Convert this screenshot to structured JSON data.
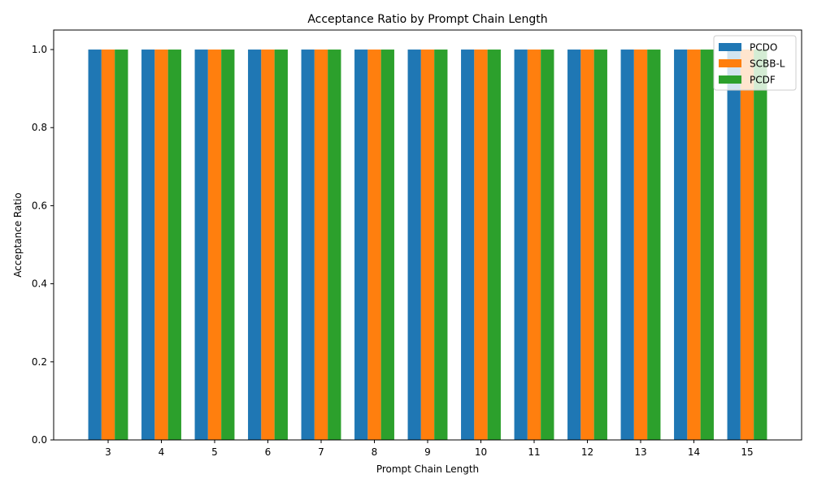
{
  "chart_data": {
    "type": "bar",
    "title": "Acceptance Ratio by Prompt Chain Length",
    "xlabel": "Prompt Chain Length",
    "ylabel": "Acceptance Ratio",
    "ylim": [
      0,
      1.05
    ],
    "yticks": [
      0.0,
      0.2,
      0.4,
      0.6,
      0.8,
      1.0
    ],
    "categories": [
      "3",
      "4",
      "5",
      "6",
      "7",
      "8",
      "9",
      "10",
      "11",
      "12",
      "13",
      "14",
      "15"
    ],
    "series": [
      {
        "name": "PCDO",
        "color": "#1f77b4",
        "values": [
          1.0,
          1.0,
          1.0,
          1.0,
          1.0,
          1.0,
          1.0,
          1.0,
          1.0,
          1.0,
          1.0,
          1.0,
          1.0
        ]
      },
      {
        "name": "SCBB-L",
        "color": "#ff7f0e",
        "values": [
          1.0,
          1.0,
          1.0,
          1.0,
          1.0,
          1.0,
          1.0,
          1.0,
          1.0,
          1.0,
          1.0,
          1.0,
          1.0
        ]
      },
      {
        "name": "PCDF",
        "color": "#2ca02c",
        "values": [
          1.0,
          1.0,
          1.0,
          1.0,
          1.0,
          1.0,
          1.0,
          1.0,
          1.0,
          1.0,
          1.0,
          1.0,
          1.0
        ]
      }
    ],
    "legend_position": "top-right",
    "grid": false
  }
}
